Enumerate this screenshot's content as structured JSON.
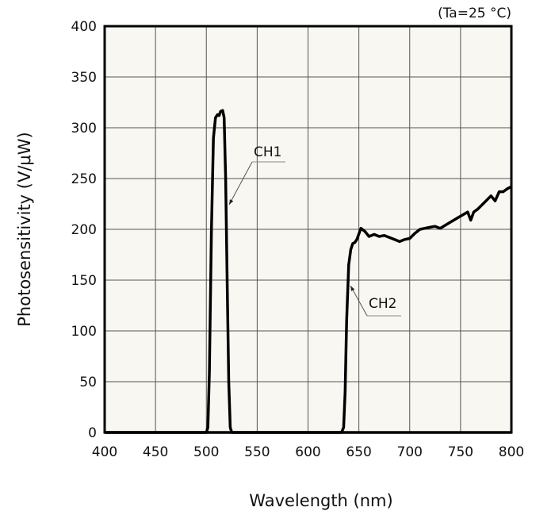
{
  "chart_data": {
    "type": "line",
    "title": "",
    "annotation": "(Ta=25 °C)",
    "xlabel": "Wavelength (nm)",
    "ylabel": "Photosensitivity (V/μW)",
    "xlim": [
      400,
      800
    ],
    "ylim": [
      0,
      400
    ],
    "xticks": [
      400,
      450,
      500,
      550,
      600,
      650,
      700,
      750,
      800
    ],
    "yticks": [
      0,
      50,
      100,
      150,
      200,
      250,
      300,
      350,
      400
    ],
    "grid": true,
    "background": "#f8f7f1",
    "series": [
      {
        "name": "CH1",
        "color": "#000000",
        "x": [
          400,
          500,
          501.5,
          503,
          505,
          507,
          509,
          511,
          512.5,
          514,
          516,
          517.5,
          519,
          520.5,
          522,
          523.5,
          525,
          800
        ],
        "y": [
          0,
          0,
          5,
          60,
          200,
          290,
          310,
          313,
          312,
          316,
          317,
          310,
          250,
          150,
          50,
          5,
          0,
          0
        ]
      },
      {
        "name": "CH2",
        "color": "#000000",
        "x": [
          400,
          633,
          635,
          636.5,
          638,
          640,
          642,
          644,
          646,
          648,
          652,
          656,
          660,
          665,
          670,
          675,
          680,
          685,
          690,
          695,
          700,
          705,
          710,
          720,
          725,
          730,
          740,
          750,
          757,
          760,
          763,
          767,
          772,
          780,
          784,
          788,
          792,
          796,
          800
        ],
        "y": [
          0,
          0,
          5,
          40,
          110,
          165,
          180,
          186,
          187,
          190,
          201,
          198,
          193,
          195,
          193,
          194,
          192,
          190,
          188,
          190,
          191,
          196,
          200,
          202,
          203,
          201,
          207,
          213,
          217,
          209,
          217,
          220,
          225,
          233,
          228,
          237,
          237,
          240,
          242
        ]
      }
    ],
    "labels": [
      {
        "text": "CH1",
        "series": "CH1"
      },
      {
        "text": "CH2",
        "series": "CH2"
      }
    ]
  }
}
